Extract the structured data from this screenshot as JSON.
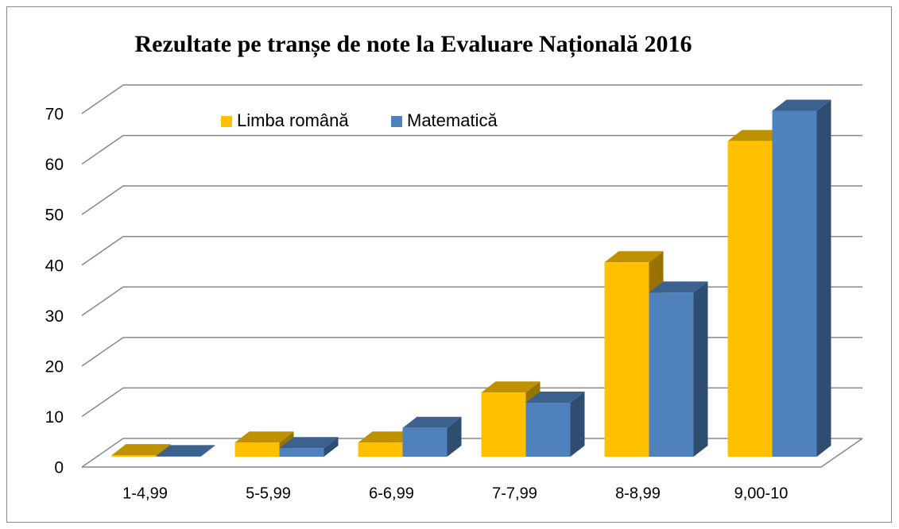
{
  "chart_data": {
    "type": "bar3d",
    "title": "Rezultate pe tranșe de note la Evaluare Națională 2016",
    "categories": [
      "1-4,99",
      "5-5,99",
      "6-6,99",
      "7-7,99",
      "8-8,99",
      "9,00-10"
    ],
    "series": [
      {
        "name": "Limba română",
        "color": "#ffc000",
        "values": [
          0.3,
          2.8,
          2.8,
          12.7,
          38.5,
          62.5
        ]
      },
      {
        "name": "Matematică",
        "color": "#4f81bd",
        "values": [
          0.1,
          1.7,
          5.7,
          10.7,
          32.5,
          68.5
        ]
      }
    ],
    "ylim": [
      0,
      70
    ],
    "yticks": [
      0,
      10,
      20,
      30,
      40,
      50,
      60,
      70
    ],
    "grid": true,
    "legend": "top"
  }
}
